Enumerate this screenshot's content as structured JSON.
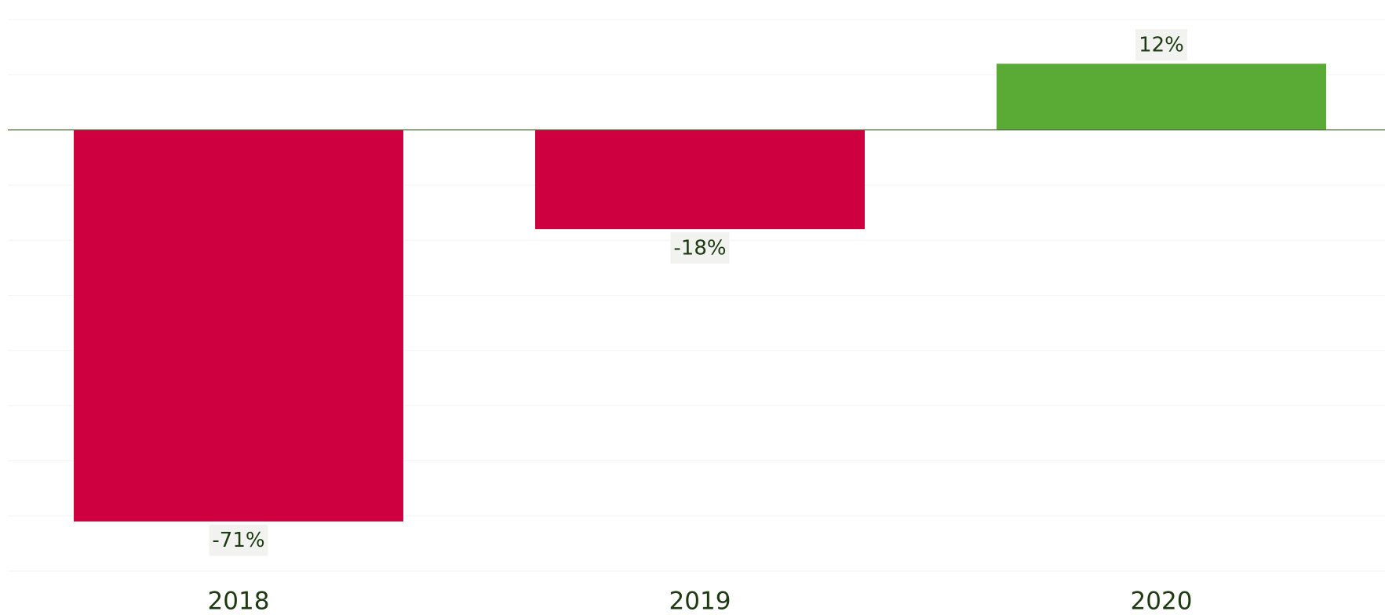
{
  "chart_data": {
    "type": "bar",
    "categories": [
      "2018",
      "2019",
      "2020"
    ],
    "values": [
      -71,
      -18,
      12
    ],
    "value_labels": [
      "-71%",
      "-18%",
      "12%"
    ],
    "colors": {
      "negative": "#cf003f",
      "positive": "#5aab35"
    },
    "ylim": [
      -80,
      20
    ],
    "yticks": [
      -80,
      -70,
      -60,
      -50,
      -40,
      -30,
      -20,
      -10,
      0,
      10,
      20
    ],
    "grid": true
  }
}
